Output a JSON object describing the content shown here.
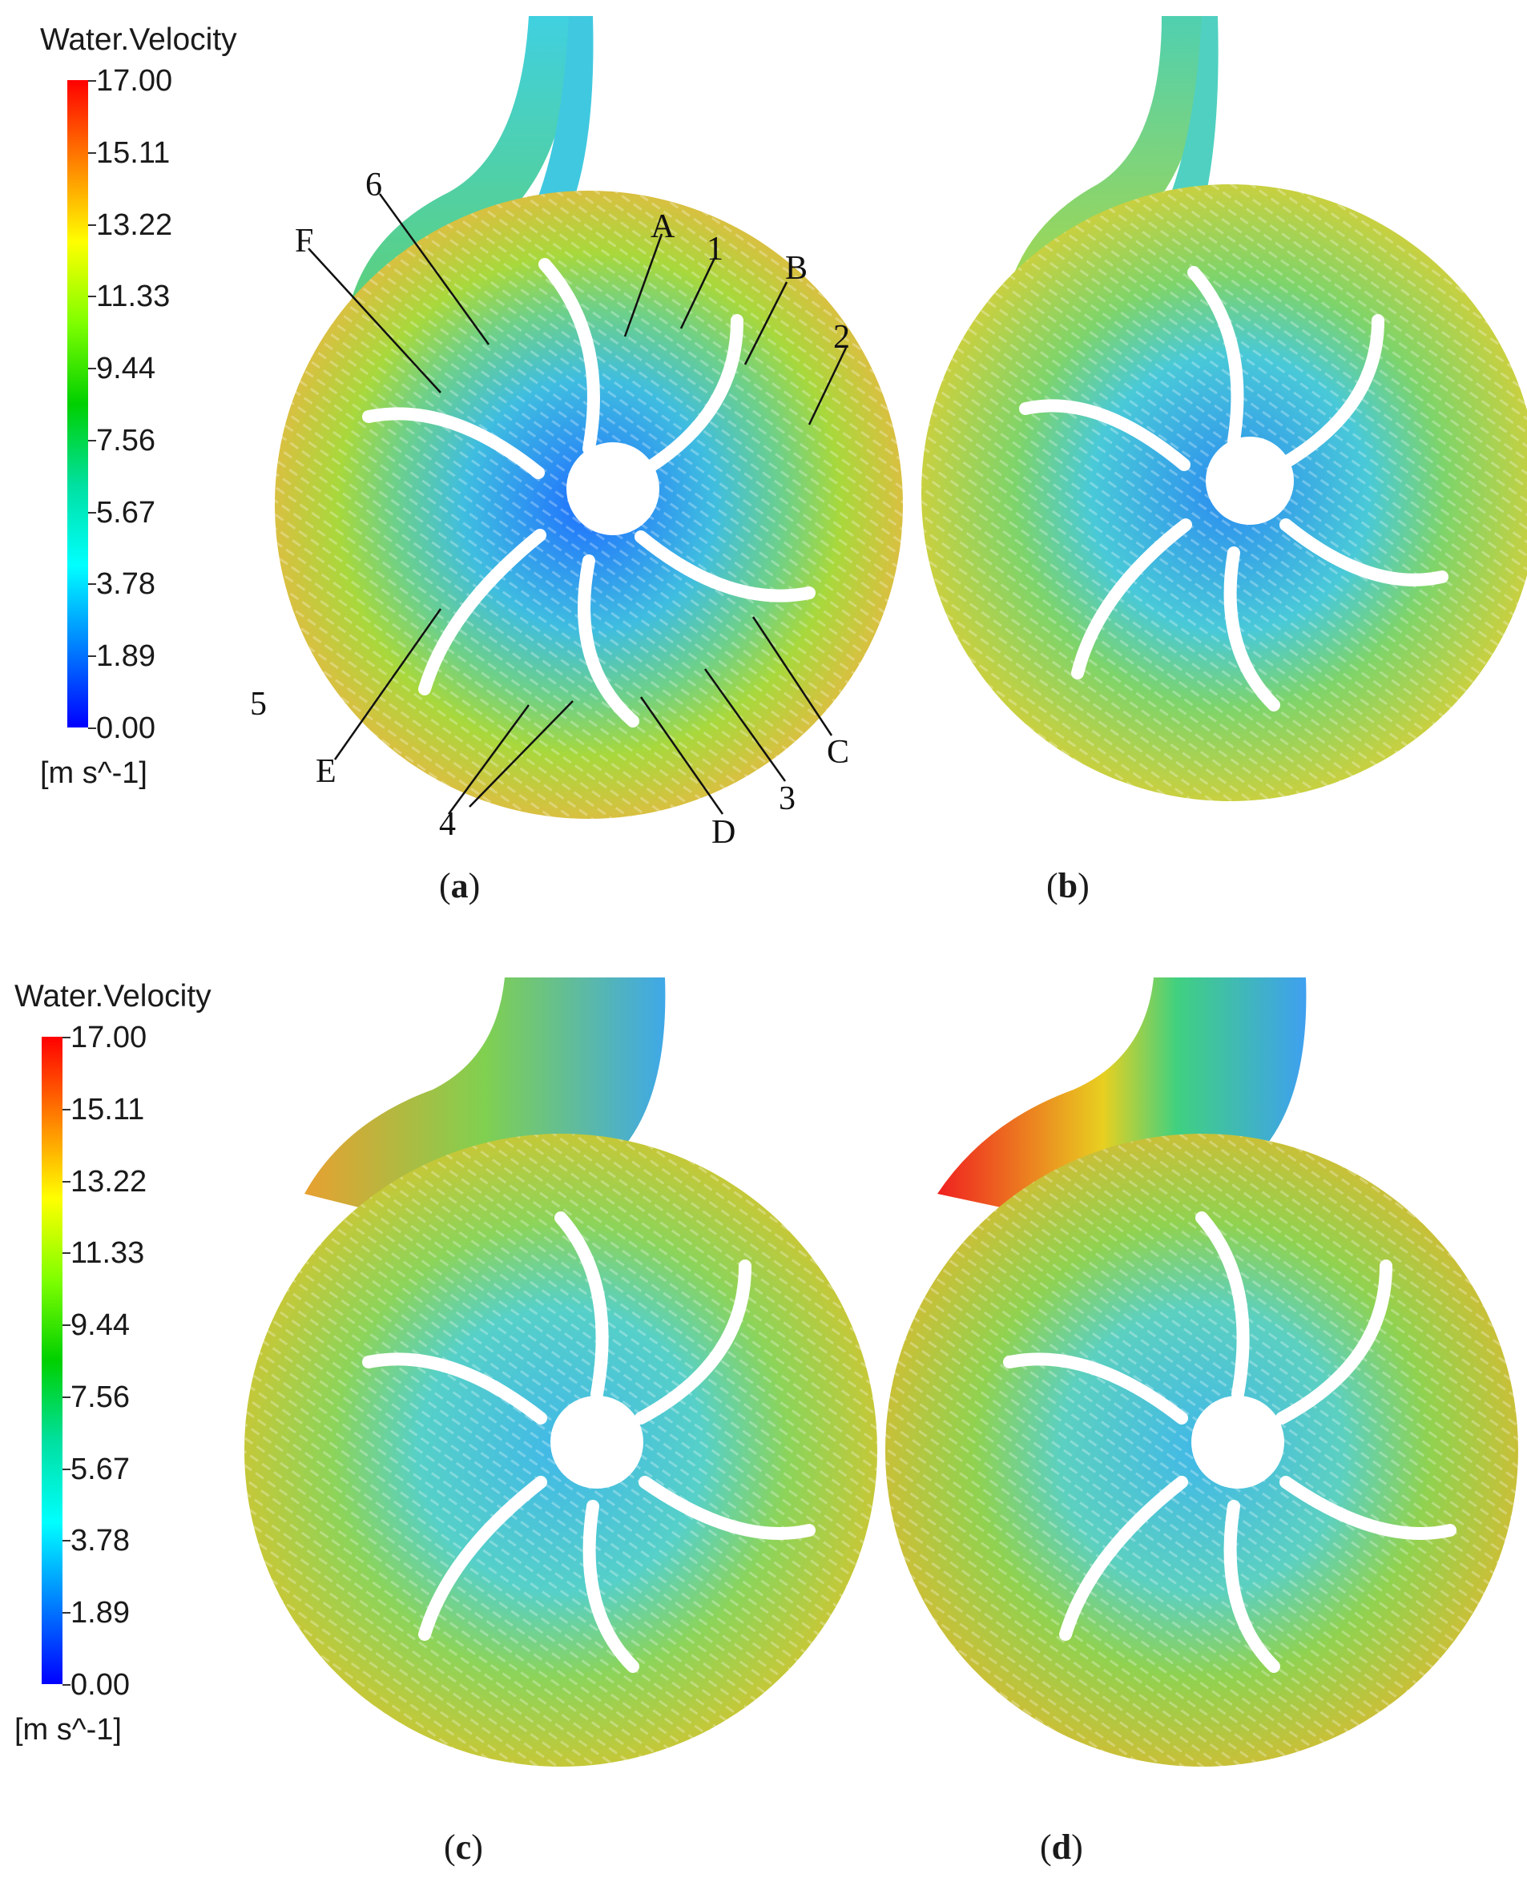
{
  "legend": {
    "title": "Water.Velocity",
    "ticks": [
      "17.00",
      "15.11",
      "13.22",
      "11.33",
      "9.44",
      "7.56",
      "5.67",
      "3.78",
      "1.89",
      "0.00"
    ],
    "unit": "[m s^-1]",
    "colors": [
      "#ff0000",
      "#ff8000",
      "#ffff00",
      "#80ff00",
      "#00d000",
      "#00e0a0",
      "#00ffff",
      "#0080ff",
      "#0000ff"
    ]
  },
  "panels": [
    {
      "caption_open": "(",
      "caption_letter": "a",
      "caption_close": ")"
    },
    {
      "caption_open": "(",
      "caption_letter": "b",
      "caption_close": ")"
    },
    {
      "caption_open": "(",
      "caption_letter": "c",
      "caption_close": ")"
    },
    {
      "caption_open": "(",
      "caption_letter": "d",
      "caption_close": ")"
    }
  ],
  "annotations": {
    "letters": [
      "A",
      "B",
      "C",
      "D",
      "E",
      "F"
    ],
    "numbers": [
      "1",
      "2",
      "3",
      "4",
      "5",
      "6"
    ]
  }
}
